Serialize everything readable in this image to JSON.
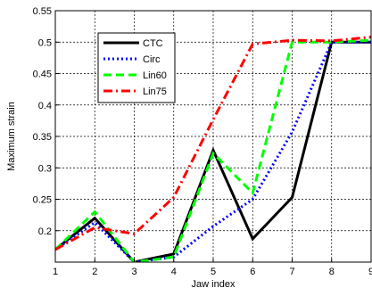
{
  "chart_data": {
    "type": "line",
    "title": "",
    "xlabel": "Jaw index",
    "ylabel": "Maximum strain",
    "xlim": [
      1,
      9
    ],
    "ylim": [
      0.15,
      0.55
    ],
    "grid": true,
    "legend_position": "top-left",
    "xticks": [
      "1",
      "2",
      "3",
      "4",
      "5",
      "6",
      "7",
      "8",
      "9"
    ],
    "yticks": [
      "0.2",
      "0.25",
      "0.3",
      "0.35",
      "0.4",
      "0.45",
      "0.5",
      "0.55"
    ],
    "x": [
      1,
      2,
      3,
      4,
      5,
      6,
      7,
      8,
      9
    ],
    "series": [
      {
        "name": "CTC",
        "color": "#000000",
        "dash": "solid",
        "values": [
          0.17,
          0.22,
          0.15,
          0.163,
          0.328,
          0.187,
          0.253,
          0.5,
          0.5
        ]
      },
      {
        "name": "Circ",
        "color": "#0000ff",
        "dash": "dotted",
        "values": [
          0.17,
          0.213,
          0.15,
          0.158,
          0.207,
          0.25,
          0.357,
          0.5,
          0.5
        ]
      },
      {
        "name": "Lin60",
        "color": "#00ff00",
        "dash": "dashed",
        "values": [
          0.17,
          0.23,
          0.15,
          0.158,
          0.323,
          0.26,
          0.5,
          0.5,
          0.503
        ]
      },
      {
        "name": "Lin75",
        "color": "#ff0000",
        "dash": "dashdot",
        "values": [
          0.17,
          0.205,
          0.195,
          0.253,
          0.377,
          0.497,
          0.503,
          0.502,
          0.508
        ]
      }
    ]
  }
}
